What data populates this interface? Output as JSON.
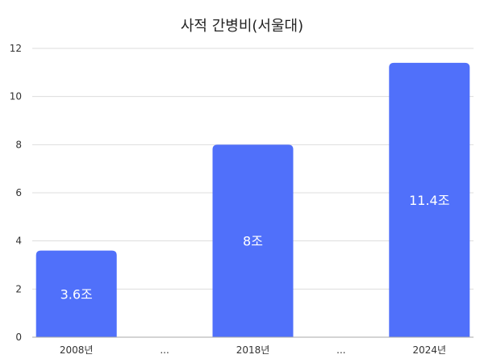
{
  "chart_data": {
    "type": "bar",
    "title": "사적 간병비(서울대)",
    "categories": [
      "2008년",
      "...",
      "2018년",
      "...",
      "2024년"
    ],
    "values": [
      3.6,
      null,
      8,
      null,
      11.4
    ],
    "data_labels": [
      "3.6조",
      "",
      "8조",
      "",
      "11.4조"
    ],
    "yticks": [
      0,
      2,
      4,
      6,
      8,
      10,
      12
    ],
    "ylim": [
      0,
      12
    ],
    "xlabel": "",
    "ylabel": "",
    "grid": true,
    "legend": "none",
    "colors": {
      "bar": "#5070fa",
      "grid": "#dddddd",
      "axis": "#aaaaaa"
    }
  }
}
